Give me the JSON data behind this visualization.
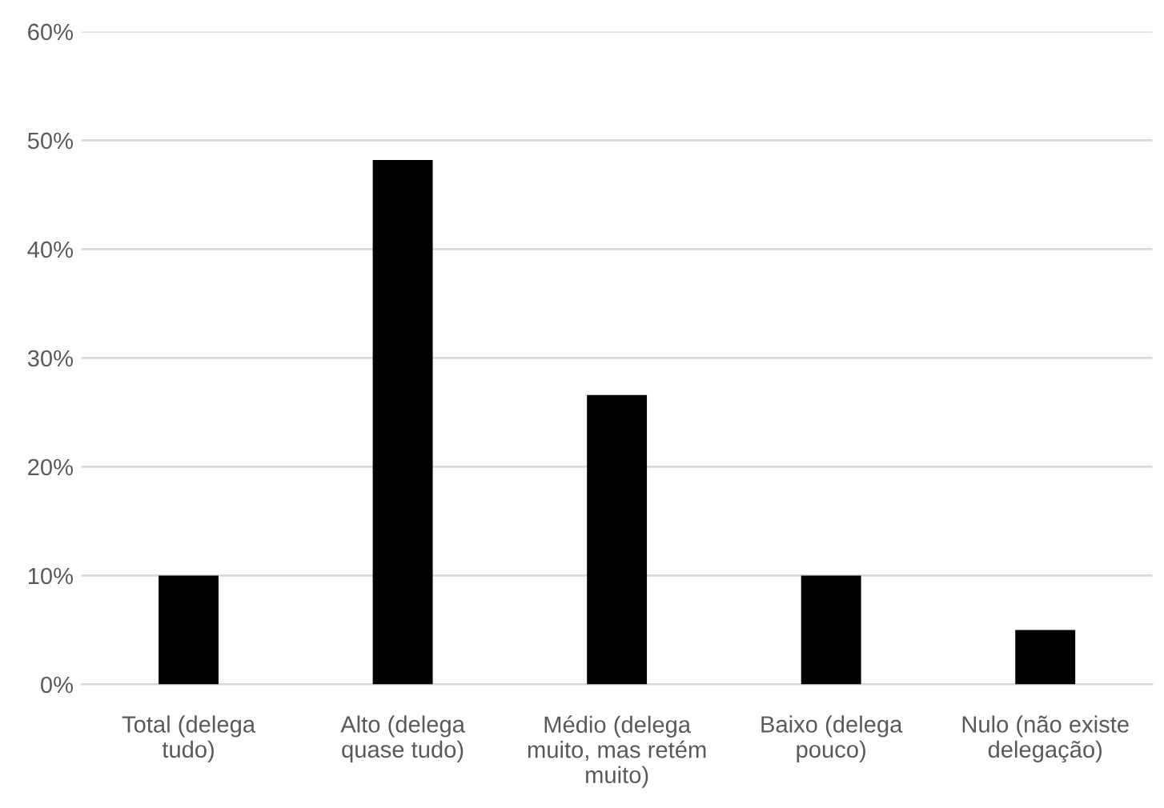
{
  "chart_data": {
    "type": "bar",
    "categories": [
      "Total (delega\ntudo)",
      "Alto (delega\nquase tudo)",
      "Médio (delega\nmuito, mas retém\nmuito)",
      "Baixo (delega\npouco)",
      "Nulo (não existe\ndelegação)"
    ],
    "values": [
      10,
      48.2,
      26.6,
      10,
      5
    ],
    "color": "#000000",
    "ylim": [
      0,
      60
    ],
    "yticks": [
      {
        "value": 0,
        "label": "0%"
      },
      {
        "value": 10,
        "label": "10%"
      },
      {
        "value": 20,
        "label": "20%"
      },
      {
        "value": 30,
        "label": "30%"
      },
      {
        "value": 40,
        "label": "40%"
      },
      {
        "value": 50,
        "label": "50%"
      },
      {
        "value": 60,
        "label": "60%"
      }
    ],
    "grid": "y"
  }
}
